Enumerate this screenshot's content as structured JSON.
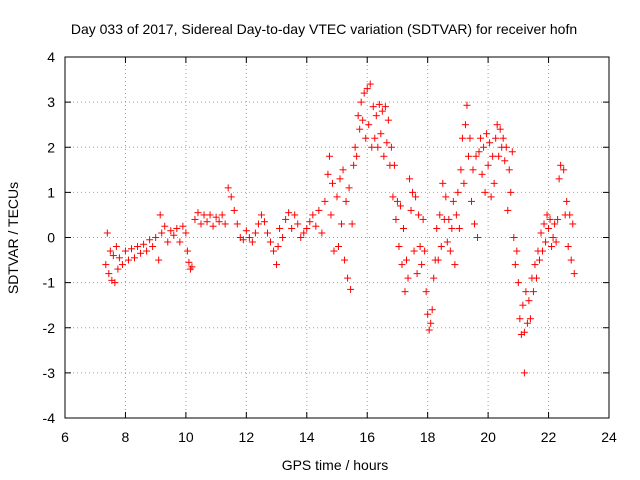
{
  "chart_data": {
    "type": "scatter",
    "title": "Day 033 of 2017, Sidereal Day-to-day VTEC variation (SDTVAR) for receiver hofn",
    "xlabel": "GPS time / hours",
    "ylabel": "SDTVAR / TECUs",
    "xlim": [
      6,
      24
    ],
    "ylim": [
      -4,
      4
    ],
    "xticks": [
      "6",
      "8",
      "10",
      "12",
      "14",
      "16",
      "18",
      "20",
      "22",
      "24"
    ],
    "yticks": [
      "4",
      "3",
      "2",
      "1",
      "0",
      "-1",
      "-2",
      "-3",
      "-4"
    ],
    "grid": true,
    "marker": "plus",
    "color": "#ff0000",
    "series": [
      {
        "name": "SDTVAR",
        "points": [
          [
            7.35,
            -0.6
          ],
          [
            7.4,
            0.1
          ],
          [
            7.45,
            -0.8
          ],
          [
            7.5,
            -0.3
          ],
          [
            7.55,
            -0.95
          ],
          [
            7.6,
            -0.4
          ],
          [
            7.65,
            -1.0
          ],
          [
            7.7,
            -0.2
          ],
          [
            7.75,
            -0.7
          ],
          [
            7.8,
            -0.45
          ],
          [
            7.9,
            -0.6
          ],
          [
            8.0,
            -0.3
          ],
          [
            8.1,
            -0.5
          ],
          [
            8.2,
            -0.25
          ],
          [
            8.3,
            -0.45
          ],
          [
            8.4,
            -0.2
          ],
          [
            8.5,
            -0.35
          ],
          [
            8.6,
            -0.15
          ],
          [
            8.7,
            -0.3
          ],
          [
            8.8,
            -0.05
          ],
          [
            8.9,
            -0.2
          ],
          [
            9.0,
            0.0
          ],
          [
            9.1,
            -0.5
          ],
          [
            9.15,
            0.5
          ],
          [
            9.2,
            0.1
          ],
          [
            9.3,
            0.25
          ],
          [
            9.4,
            -0.1
          ],
          [
            9.5,
            0.15
          ],
          [
            9.6,
            0.05
          ],
          [
            9.7,
            0.2
          ],
          [
            9.8,
            -0.1
          ],
          [
            9.9,
            0.25
          ],
          [
            10.0,
            0.1
          ],
          [
            10.05,
            -0.3
          ],
          [
            10.1,
            -0.55
          ],
          [
            10.15,
            -0.7
          ],
          [
            10.2,
            -0.65
          ],
          [
            10.3,
            0.4
          ],
          [
            10.4,
            0.55
          ],
          [
            10.5,
            0.3
          ],
          [
            10.6,
            0.5
          ],
          [
            10.7,
            0.35
          ],
          [
            10.8,
            0.5
          ],
          [
            10.9,
            0.25
          ],
          [
            11.0,
            0.45
          ],
          [
            11.1,
            0.35
          ],
          [
            11.2,
            0.5
          ],
          [
            11.3,
            0.3
          ],
          [
            11.4,
            1.1
          ],
          [
            11.5,
            0.9
          ],
          [
            11.6,
            0.6
          ],
          [
            11.7,
            0.3
          ],
          [
            11.8,
            0.0
          ],
          [
            11.9,
            -0.05
          ],
          [
            12.0,
            0.15
          ],
          [
            12.1,
            0.0
          ],
          [
            12.2,
            -0.1
          ],
          [
            12.3,
            0.1
          ],
          [
            12.4,
            0.3
          ],
          [
            12.5,
            0.5
          ],
          [
            12.6,
            0.35
          ],
          [
            12.7,
            0.1
          ],
          [
            12.8,
            -0.1
          ],
          [
            12.9,
            -0.3
          ],
          [
            13.0,
            -0.6
          ],
          [
            13.05,
            -0.2
          ],
          [
            13.1,
            0.2
          ],
          [
            13.2,
            0.0
          ],
          [
            13.3,
            0.4
          ],
          [
            13.4,
            0.55
          ],
          [
            13.5,
            0.2
          ],
          [
            13.6,
            0.5
          ],
          [
            13.7,
            0.3
          ],
          [
            13.8,
            0.0
          ],
          [
            13.9,
            0.1
          ],
          [
            14.0,
            0.2
          ],
          [
            14.1,
            0.35
          ],
          [
            14.2,
            0.5
          ],
          [
            14.3,
            0.25
          ],
          [
            14.4,
            0.6
          ],
          [
            14.5,
            0.1
          ],
          [
            14.6,
            0.8
          ],
          [
            14.7,
            1.4
          ],
          [
            14.75,
            1.8
          ],
          [
            14.8,
            0.5
          ],
          [
            14.85,
            1.2
          ],
          [
            14.9,
            -0.3
          ],
          [
            15.0,
            0.9
          ],
          [
            15.05,
            -0.2
          ],
          [
            15.1,
            1.3
          ],
          [
            15.15,
            0.3
          ],
          [
            15.2,
            1.5
          ],
          [
            15.25,
            -0.5
          ],
          [
            15.3,
            0.8
          ],
          [
            15.35,
            -0.9
          ],
          [
            15.4,
            1.1
          ],
          [
            15.45,
            -1.15
          ],
          [
            15.5,
            0.3
          ],
          [
            15.55,
            1.6
          ],
          [
            15.6,
            2.0
          ],
          [
            15.65,
            1.8
          ],
          [
            15.7,
            2.7
          ],
          [
            15.75,
            2.4
          ],
          [
            15.8,
            3.0
          ],
          [
            15.85,
            2.6
          ],
          [
            15.9,
            3.2
          ],
          [
            15.95,
            2.2
          ],
          [
            16.0,
            3.3
          ],
          [
            16.05,
            2.5
          ],
          [
            16.1,
            3.4
          ],
          [
            16.15,
            2.0
          ],
          [
            16.2,
            2.9
          ],
          [
            16.25,
            2.2
          ],
          [
            16.3,
            2.7
          ],
          [
            16.35,
            2.0
          ],
          [
            16.4,
            2.95
          ],
          [
            16.45,
            2.3
          ],
          [
            16.5,
            2.8
          ],
          [
            16.55,
            1.8
          ],
          [
            16.6,
            2.9
          ],
          [
            16.65,
            2.1
          ],
          [
            16.7,
            2.6
          ],
          [
            16.75,
            1.6
          ],
          [
            16.8,
            2.0
          ],
          [
            16.85,
            0.9
          ],
          [
            16.9,
            1.6
          ],
          [
            16.95,
            0.4
          ],
          [
            17.0,
            0.8
          ],
          [
            17.05,
            -0.2
          ],
          [
            17.1,
            0.7
          ],
          [
            17.15,
            -0.6
          ],
          [
            17.2,
            0.2
          ],
          [
            17.25,
            -1.2
          ],
          [
            17.3,
            -0.5
          ],
          [
            17.35,
            -0.9
          ],
          [
            17.4,
            1.3
          ],
          [
            17.45,
            0.6
          ],
          [
            17.5,
            1.0
          ],
          [
            17.55,
            -0.3
          ],
          [
            17.6,
            0.9
          ],
          [
            17.65,
            -0.8
          ],
          [
            17.7,
            0.5
          ],
          [
            17.75,
            -0.2
          ],
          [
            17.8,
            -0.6
          ],
          [
            17.85,
            0.4
          ],
          [
            17.9,
            -0.3
          ],
          [
            17.95,
            -1.2
          ],
          [
            18.0,
            -1.7
          ],
          [
            18.05,
            -2.05
          ],
          [
            18.1,
            -1.9
          ],
          [
            18.15,
            -1.6
          ],
          [
            18.2,
            -0.9
          ],
          [
            18.25,
            -0.5
          ],
          [
            18.3,
            0.2
          ],
          [
            18.35,
            -0.5
          ],
          [
            18.4,
            0.5
          ],
          [
            18.45,
            -0.2
          ],
          [
            18.5,
            1.2
          ],
          [
            18.55,
            0.4
          ],
          [
            18.6,
            0.9
          ],
          [
            18.65,
            -0.1
          ],
          [
            18.7,
            0.4
          ],
          [
            18.75,
            -0.3
          ],
          [
            18.8,
            0.2
          ],
          [
            18.85,
            0.8
          ],
          [
            18.9,
            -0.6
          ],
          [
            18.95,
            0.5
          ],
          [
            19.0,
            1.0
          ],
          [
            19.05,
            0.2
          ],
          [
            19.1,
            1.5
          ],
          [
            19.15,
            2.2
          ],
          [
            19.2,
            1.2
          ],
          [
            19.25,
            2.5
          ],
          [
            19.3,
            2.93
          ],
          [
            19.35,
            1.8
          ],
          [
            19.4,
            2.2
          ],
          [
            19.45,
            0.8
          ],
          [
            19.5,
            1.5
          ],
          [
            19.55,
            0.3
          ],
          [
            19.6,
            1.8
          ],
          [
            19.65,
            0.0
          ],
          [
            19.7,
            1.9
          ],
          [
            19.75,
            2.2
          ],
          [
            19.8,
            1.4
          ],
          [
            19.85,
            2.0
          ],
          [
            19.9,
            1.0
          ],
          [
            19.95,
            2.3
          ],
          [
            20.0,
            1.6
          ],
          [
            20.05,
            2.1
          ],
          [
            20.1,
            0.9
          ],
          [
            20.15,
            1.8
          ],
          [
            20.2,
            1.2
          ],
          [
            20.25,
            2.2
          ],
          [
            20.3,
            2.5
          ],
          [
            20.35,
            1.8
          ],
          [
            20.4,
            2.4
          ],
          [
            20.45,
            2.0
          ],
          [
            20.5,
            2.2
          ],
          [
            20.55,
            1.7
          ],
          [
            20.6,
            2.0
          ],
          [
            20.65,
            0.6
          ],
          [
            20.7,
            1.5
          ],
          [
            20.75,
            1.0
          ],
          [
            20.8,
            1.9
          ],
          [
            20.85,
            0.0
          ],
          [
            20.9,
            -0.6
          ],
          [
            20.95,
            -0.3
          ],
          [
            21.0,
            -1.0
          ],
          [
            21.05,
            -1.8
          ],
          [
            21.1,
            -2.15
          ],
          [
            21.15,
            -1.5
          ],
          [
            21.2,
            -2.1
          ],
          [
            21.25,
            -1.2
          ],
          [
            21.3,
            -1.9
          ],
          [
            21.35,
            -1.4
          ],
          [
            21.4,
            -1.8
          ],
          [
            21.45,
            -0.9
          ],
          [
            21.5,
            -1.2
          ],
          [
            21.55,
            -0.6
          ],
          [
            21.6,
            -0.9
          ],
          [
            21.65,
            -0.3
          ],
          [
            21.7,
            -0.5
          ],
          [
            21.75,
            0.1
          ],
          [
            21.8,
            -0.3
          ],
          [
            21.85,
            0.3
          ],
          [
            21.9,
            -0.1
          ],
          [
            21.95,
            0.5
          ],
          [
            22.0,
            0.2
          ],
          [
            22.05,
            0.4
          ],
          [
            22.1,
            -0.2
          ],
          [
            22.15,
            0.0
          ],
          [
            22.2,
            0.3
          ],
          [
            22.25,
            -0.1
          ],
          [
            22.3,
            0.4
          ],
          [
            22.35,
            1.3
          ],
          [
            22.4,
            1.6
          ],
          [
            22.5,
            1.5
          ],
          [
            22.55,
            0.5
          ],
          [
            22.6,
            0.8
          ],
          [
            22.65,
            -0.2
          ],
          [
            22.7,
            0.5
          ],
          [
            22.75,
            -0.5
          ],
          [
            22.8,
            0.3
          ],
          [
            22.85,
            -0.8
          ],
          [
            21.2,
            -3.0
          ]
        ]
      }
    ]
  }
}
